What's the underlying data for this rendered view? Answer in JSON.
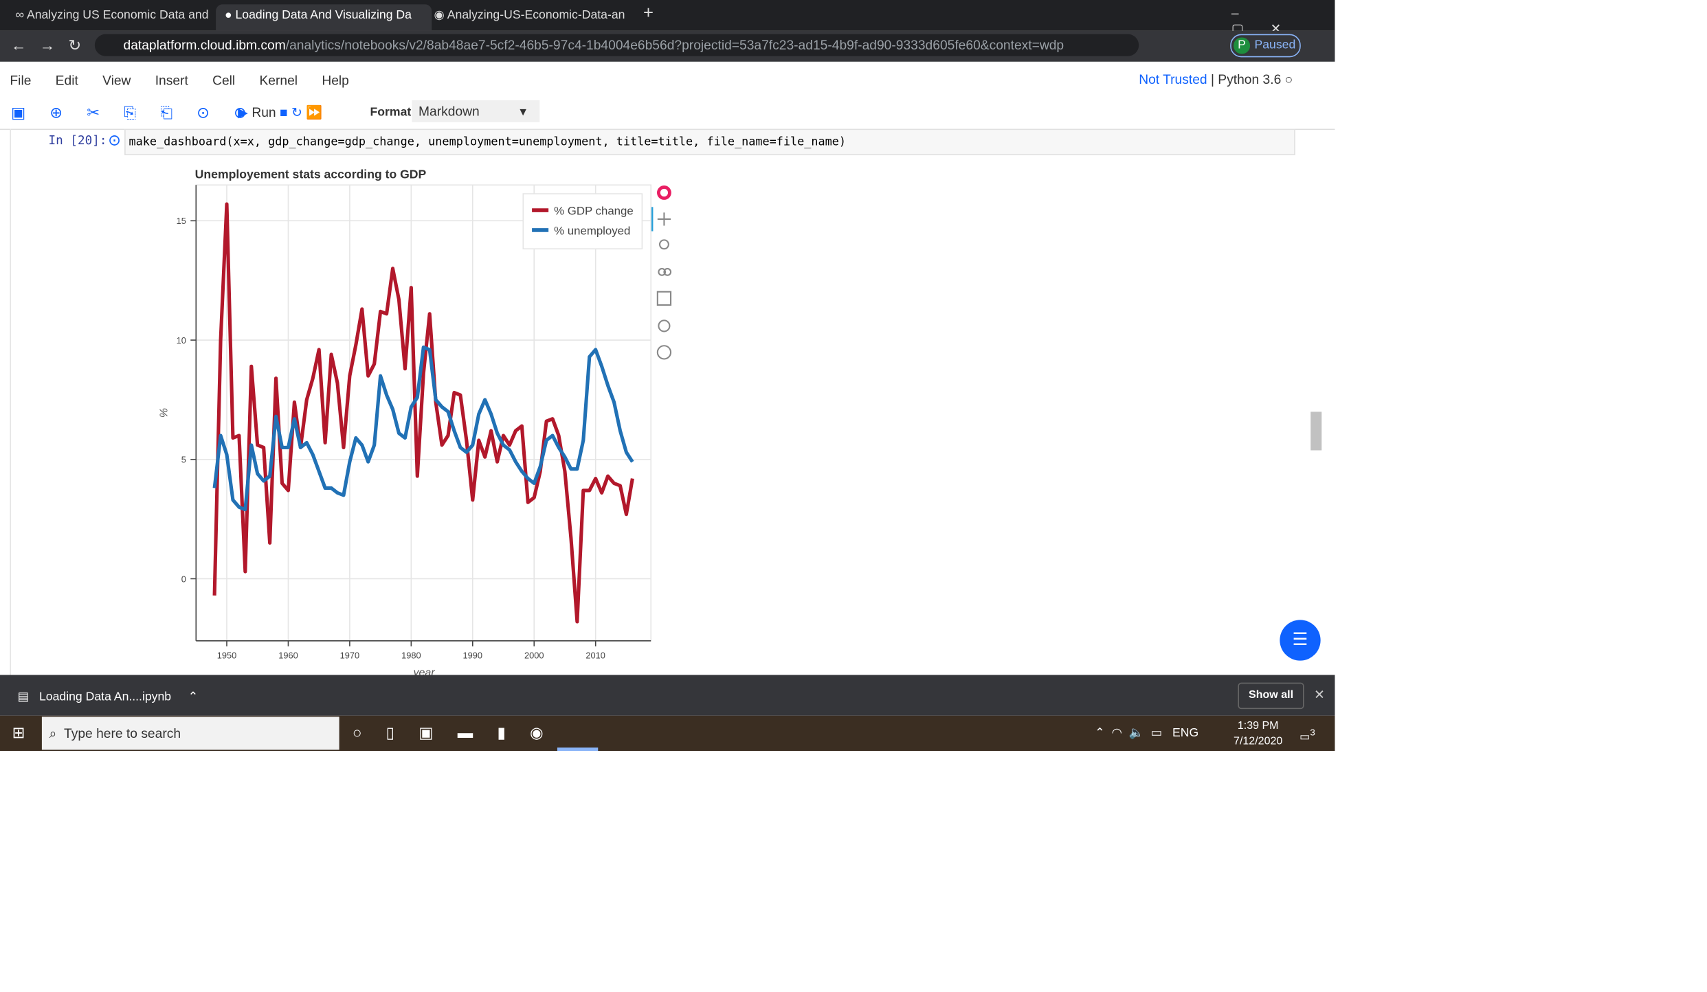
{
  "browser": {
    "tabs": [
      "Analyzing US Economic Data and",
      "Loading Data And Visualizing Da",
      "Analyzing-US-Economic-Data-an"
    ],
    "url_host": "dataplatform.cloud.ibm.com",
    "url_path": "/analytics/notebooks/v2/8ab48ae7-5cf2-46b5-97c4-1b4004e6b56d?projectid=53a7fc23-ad15-4b9f-ad90-9333d605fe60&context=wdp",
    "profile": "P",
    "profile_status": "Paused"
  },
  "notebook": {
    "menu": [
      "File",
      "Edit",
      "View",
      "Insert",
      "Cell",
      "Kernel",
      "Help"
    ],
    "trust": "Not Trusted",
    "kernel": "Python 3.6",
    "run": "Run",
    "format_label": "Format",
    "cell_type": "Markdown",
    "prompt": "In [20]:",
    "code": "make_dashboard(x=x, gdp_change=gdp_change, unemployment=unemployment, title=title, file_name=file_name)"
  },
  "chart_data": {
    "type": "line",
    "title": "Unemployement stats according to GDP",
    "xlabel": "year",
    "ylabel": "%",
    "x": [
      1948,
      1949,
      1950,
      1951,
      1952,
      1953,
      1954,
      1955,
      1956,
      1957,
      1958,
      1959,
      1960,
      1961,
      1962,
      1963,
      1964,
      1965,
      1966,
      1967,
      1968,
      1969,
      1970,
      1971,
      1972,
      1973,
      1974,
      1975,
      1976,
      1977,
      1978,
      1979,
      1980,
      1981,
      1982,
      1983,
      1984,
      1985,
      1986,
      1987,
      1988,
      1989,
      1990,
      1991,
      1992,
      1993,
      1994,
      1995,
      1996,
      1997,
      1998,
      1999,
      2000,
      2001,
      2002,
      2003,
      2004,
      2005,
      2006,
      2007,
      2008,
      2009,
      2010,
      2011,
      2012,
      2013,
      2014,
      2015,
      2016
    ],
    "series": [
      {
        "name": "% GDP change",
        "color": "#b2182b",
        "values": [
          -0.7,
          10.0,
          15.7,
          5.9,
          6.0,
          0.3,
          8.9,
          5.6,
          5.5,
          1.5,
          8.4,
          4.0,
          3.7,
          7.4,
          5.5,
          7.5,
          8.4,
          9.6,
          5.7,
          9.4,
          8.2,
          5.5,
          8.5,
          9.8,
          11.3,
          8.5,
          9.0,
          11.2,
          11.1,
          13.0,
          11.7,
          8.8,
          12.2,
          4.3,
          8.6,
          11.1,
          7.4,
          5.6,
          6.0,
          7.8,
          7.7,
          5.8,
          3.3,
          5.8,
          5.1,
          6.2,
          4.9,
          6.0,
          5.6,
          6.2,
          6.4,
          3.2,
          3.4,
          4.5,
          6.6,
          6.7,
          6.0,
          4.5,
          1.7,
          -1.8,
          3.7,
          3.7,
          4.2,
          3.6,
          4.3,
          4.0,
          3.9,
          2.7,
          4.2
        ]
      },
      {
        "name": "% unemployed",
        "color": "#2171b5",
        "values": [
          3.8,
          6.0,
          5.2,
          3.3,
          3.0,
          2.9,
          5.6,
          4.4,
          4.1,
          4.3,
          6.8,
          5.5,
          5.5,
          6.7,
          5.5,
          5.7,
          5.2,
          4.5,
          3.8,
          3.8,
          3.6,
          3.5,
          4.9,
          5.9,
          5.6,
          4.9,
          5.6,
          8.5,
          7.7,
          7.1,
          6.1,
          5.9,
          7.2,
          7.6,
          9.7,
          9.6,
          7.5,
          7.2,
          7.0,
          6.2,
          5.5,
          5.3,
          5.6,
          6.9,
          7.5,
          6.9,
          6.1,
          5.6,
          5.4,
          4.9,
          4.5,
          4.2,
          4.0,
          4.7,
          5.8,
          6.0,
          5.5,
          5.1,
          4.6,
          4.6,
          5.8,
          9.3,
          9.6,
          8.9,
          8.1,
          7.4,
          6.2,
          5.3,
          4.9
        ]
      }
    ],
    "xlim": [
      1945,
      2019
    ],
    "xticks": [
      1950,
      1960,
      1970,
      1980,
      1990,
      2000,
      2010
    ],
    "ylim": [
      -2.6,
      16.5
    ],
    "yticks": [
      0,
      5,
      10,
      15
    ],
    "grid": true,
    "legend": "top-right"
  },
  "downloads": {
    "file": "Loading Data An....ipynb",
    "show_all": "Show all"
  },
  "taskbar": {
    "search": "Type here to search",
    "lang": "ENG",
    "time": "1:39 PM",
    "date": "7/12/2020",
    "notifications": "3"
  }
}
